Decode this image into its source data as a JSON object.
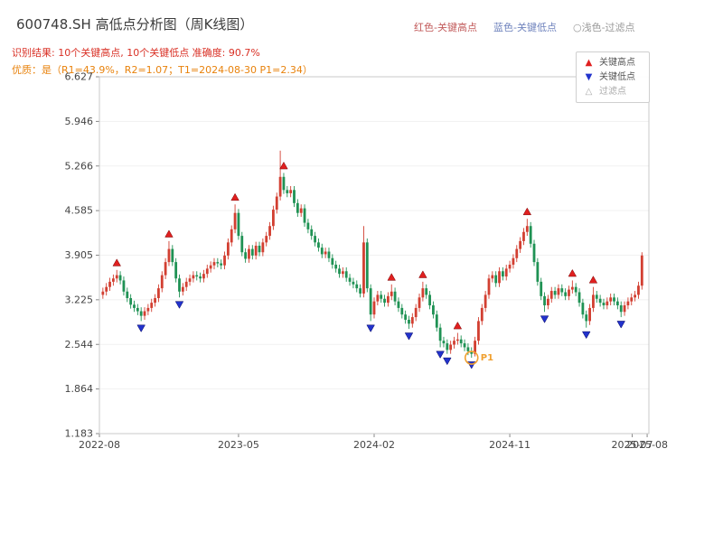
{
  "header": {
    "title": "600748.SH 高低点分析图（周K线图）",
    "legend_inline": [
      {
        "label": "红色-关键高点",
        "color": "#c25b5b"
      },
      {
        "label": "蓝色-关键低点",
        "color": "#6f83bd"
      },
      {
        "label": "○浅色-过滤点",
        "color": "#999999"
      }
    ],
    "result_line": "识别结果: 10个关键高点, 10个关键低点  准确度: 90.7%",
    "result_color": "#d93025",
    "quality_line": "优质：是（R1=43.9%，R2=1.07；T1=2024-08-30 P1=2.34）",
    "quality_color": "#e8820c"
  },
  "legend_box": {
    "items": [
      {
        "label": "关键高点",
        "glyph": "▲",
        "color": "#e02020",
        "muted": false
      },
      {
        "label": "关键低点",
        "glyph": "▼",
        "color": "#2233cc",
        "muted": false
      },
      {
        "label": "过滤点",
        "glyph": "△",
        "color": "#aaaaaa",
        "muted": true
      }
    ]
  },
  "chart_data": {
    "type": "candlestick",
    "symbol": "600748.SH",
    "period": "weekly",
    "title": "600748.SH 高低点分析图（周K线图）",
    "ylim": [
      1.183,
      6.627
    ],
    "y_ticks": [
      6.627,
      5.946,
      5.266,
      4.585,
      3.905,
      3.225,
      2.544,
      1.864,
      1.183
    ],
    "x_ticks": [
      {
        "label": "2022-08",
        "week": -1
      },
      {
        "label": "2023-05",
        "week": 39
      },
      {
        "label": "2024-02",
        "week": 78
      },
      {
        "label": "2024-11",
        "week": 117
      },
      {
        "label": "2025-07",
        "week": 152.2
      },
      {
        "label": "2025-08",
        "week": 156.5
      }
    ],
    "grid": "light-horizontal",
    "legend_position": "top-right",
    "key_high_count": 10,
    "key_low_count": 10,
    "accuracy": "90.7%",
    "annotation_point": {
      "week": 106,
      "price": 2.34,
      "label": "P1",
      "date": "2024-08-30"
    },
    "key_highs": [
      4,
      19,
      38,
      52,
      83,
      92,
      102,
      122,
      135,
      141
    ],
    "key_lows": [
      11,
      22,
      77,
      88,
      97,
      99,
      106,
      127,
      139,
      149
    ],
    "colors": {
      "up": "#d23f31",
      "down": "#1f9254",
      "key_high": "#e02020",
      "key_low": "#2233cc",
      "annotation": "#f0a030"
    },
    "candles": [
      [
        3.3,
        3.41,
        3.24,
        3.35
      ],
      [
        3.35,
        3.48,
        3.29,
        3.42
      ],
      [
        3.42,
        3.56,
        3.36,
        3.5
      ],
      [
        3.5,
        3.61,
        3.44,
        3.55
      ],
      [
        3.55,
        3.68,
        3.49,
        3.6
      ],
      [
        3.6,
        3.66,
        3.46,
        3.52
      ],
      [
        3.52,
        3.58,
        3.29,
        3.35
      ],
      [
        3.35,
        3.41,
        3.19,
        3.25
      ],
      [
        3.25,
        3.31,
        3.09,
        3.15
      ],
      [
        3.15,
        3.21,
        3.04,
        3.1
      ],
      [
        3.1,
        3.16,
        2.99,
        3.05
      ],
      [
        3.05,
        3.11,
        2.9,
        2.98
      ],
      [
        2.98,
        3.11,
        2.92,
        3.05
      ],
      [
        3.05,
        3.16,
        2.99,
        3.1
      ],
      [
        3.1,
        3.24,
        3.04,
        3.18
      ],
      [
        3.18,
        3.31,
        3.12,
        3.25
      ],
      [
        3.25,
        3.46,
        3.19,
        3.4
      ],
      [
        3.4,
        3.66,
        3.34,
        3.6
      ],
      [
        3.6,
        3.86,
        3.54,
        3.8
      ],
      [
        3.8,
        4.12,
        3.74,
        4.0
      ],
      [
        4.0,
        4.06,
        3.74,
        3.8
      ],
      [
        3.8,
        3.86,
        3.49,
        3.55
      ],
      [
        3.55,
        3.61,
        3.26,
        3.35
      ],
      [
        3.35,
        3.48,
        3.29,
        3.42
      ],
      [
        3.42,
        3.56,
        3.36,
        3.5
      ],
      [
        3.5,
        3.61,
        3.44,
        3.55
      ],
      [
        3.55,
        3.66,
        3.49,
        3.6
      ],
      [
        3.6,
        3.66,
        3.52,
        3.58
      ],
      [
        3.58,
        3.64,
        3.49,
        3.55
      ],
      [
        3.55,
        3.68,
        3.49,
        3.62
      ],
      [
        3.62,
        3.76,
        3.56,
        3.7
      ],
      [
        3.7,
        3.81,
        3.64,
        3.75
      ],
      [
        3.75,
        3.86,
        3.69,
        3.8
      ],
      [
        3.8,
        3.86,
        3.72,
        3.78
      ],
      [
        3.78,
        3.84,
        3.69,
        3.75
      ],
      [
        3.75,
        3.96,
        3.69,
        3.9
      ],
      [
        3.9,
        4.16,
        3.84,
        4.1
      ],
      [
        4.1,
        4.36,
        4.04,
        4.3
      ],
      [
        4.3,
        4.68,
        4.24,
        4.55
      ],
      [
        4.55,
        4.61,
        4.14,
        4.2
      ],
      [
        4.2,
        4.26,
        3.89,
        3.95
      ],
      [
        3.95,
        4.01,
        3.79,
        3.85
      ],
      [
        3.85,
        4.06,
        3.79,
        4.0
      ],
      [
        4.0,
        4.06,
        3.84,
        3.9
      ],
      [
        3.9,
        4.11,
        3.84,
        4.05
      ],
      [
        4.05,
        4.11,
        3.89,
        3.95
      ],
      [
        3.95,
        4.16,
        3.89,
        4.1
      ],
      [
        4.1,
        4.26,
        4.04,
        4.2
      ],
      [
        4.2,
        4.41,
        4.14,
        4.35
      ],
      [
        4.35,
        4.66,
        4.29,
        4.6
      ],
      [
        4.6,
        4.86,
        4.54,
        4.8
      ],
      [
        4.8,
        5.5,
        4.74,
        5.1
      ],
      [
        5.1,
        5.16,
        4.84,
        4.9
      ],
      [
        4.9,
        4.96,
        4.79,
        4.85
      ],
      [
        4.85,
        4.96,
        4.79,
        4.9
      ],
      [
        4.9,
        4.96,
        4.64,
        4.7
      ],
      [
        4.7,
        4.76,
        4.49,
        4.55
      ],
      [
        4.55,
        4.68,
        4.49,
        4.62
      ],
      [
        4.62,
        4.68,
        4.34,
        4.4
      ],
      [
        4.4,
        4.46,
        4.24,
        4.3
      ],
      [
        4.3,
        4.36,
        4.14,
        4.2
      ],
      [
        4.2,
        4.26,
        4.04,
        4.1
      ],
      [
        4.1,
        4.16,
        3.96,
        4.02
      ],
      [
        4.02,
        4.08,
        3.86,
        3.92
      ],
      [
        3.92,
        4.02,
        3.86,
        3.96
      ],
      [
        3.96,
        4.02,
        3.8,
        3.86
      ],
      [
        3.86,
        3.92,
        3.7,
        3.76
      ],
      [
        3.76,
        3.82,
        3.64,
        3.7
      ],
      [
        3.7,
        3.76,
        3.56,
        3.62
      ],
      [
        3.62,
        3.72,
        3.56,
        3.66
      ],
      [
        3.66,
        3.72,
        3.5,
        3.56
      ],
      [
        3.56,
        3.62,
        3.44,
        3.5
      ],
      [
        3.5,
        3.56,
        3.4,
        3.46
      ],
      [
        3.46,
        3.52,
        3.34,
        3.4
      ],
      [
        3.4,
        3.46,
        3.26,
        3.32
      ],
      [
        3.32,
        4.35,
        3.26,
        4.1
      ],
      [
        4.1,
        4.16,
        3.34,
        3.4
      ],
      [
        3.4,
        3.46,
        2.9,
        3.0
      ],
      [
        3.0,
        3.26,
        2.94,
        3.2
      ],
      [
        3.2,
        3.36,
        3.14,
        3.3
      ],
      [
        3.3,
        3.36,
        3.18,
        3.24
      ],
      [
        3.24,
        3.3,
        3.12,
        3.18
      ],
      [
        3.18,
        3.34,
        3.12,
        3.28
      ],
      [
        3.28,
        3.46,
        3.22,
        3.35
      ],
      [
        3.35,
        3.41,
        3.14,
        3.2
      ],
      [
        3.2,
        3.26,
        3.04,
        3.1
      ],
      [
        3.1,
        3.16,
        2.94,
        3.0
      ],
      [
        3.0,
        3.06,
        2.86,
        2.92
      ],
      [
        2.92,
        2.98,
        2.78,
        2.86
      ],
      [
        2.86,
        3.02,
        2.8,
        2.96
      ],
      [
        2.96,
        3.16,
        2.9,
        3.1
      ],
      [
        3.1,
        3.32,
        3.04,
        3.26
      ],
      [
        3.26,
        3.5,
        3.2,
        3.4
      ],
      [
        3.4,
        3.46,
        3.24,
        3.3
      ],
      [
        3.3,
        3.36,
        3.08,
        3.14
      ],
      [
        3.14,
        3.2,
        2.94,
        3.0
      ],
      [
        3.0,
        3.06,
        2.74,
        2.8
      ],
      [
        2.8,
        2.86,
        2.5,
        2.6
      ],
      [
        2.6,
        2.66,
        2.5,
        2.56
      ],
      [
        2.56,
        2.62,
        2.4,
        2.46
      ],
      [
        2.46,
        2.6,
        2.4,
        2.54
      ],
      [
        2.54,
        2.66,
        2.48,
        2.6
      ],
      [
        2.6,
        2.72,
        2.54,
        2.62
      ],
      [
        2.62,
        2.68,
        2.5,
        2.56
      ],
      [
        2.56,
        2.62,
        2.44,
        2.5
      ],
      [
        2.5,
        2.56,
        2.38,
        2.44
      ],
      [
        2.44,
        2.5,
        2.34,
        2.4
      ],
      [
        2.4,
        2.66,
        2.36,
        2.6
      ],
      [
        2.6,
        2.96,
        2.54,
        2.9
      ],
      [
        2.9,
        3.16,
        2.84,
        3.1
      ],
      [
        3.1,
        3.36,
        3.04,
        3.3
      ],
      [
        3.3,
        3.61,
        3.24,
        3.55
      ],
      [
        3.55,
        3.66,
        3.49,
        3.6
      ],
      [
        3.6,
        3.66,
        3.42,
        3.48
      ],
      [
        3.48,
        3.72,
        3.42,
        3.66
      ],
      [
        3.66,
        3.72,
        3.52,
        3.58
      ],
      [
        3.58,
        3.76,
        3.52,
        3.7
      ],
      [
        3.7,
        3.82,
        3.64,
        3.76
      ],
      [
        3.76,
        3.92,
        3.7,
        3.86
      ],
      [
        3.86,
        4.06,
        3.8,
        4.0
      ],
      [
        4.0,
        4.18,
        3.94,
        4.12
      ],
      [
        4.12,
        4.32,
        4.06,
        4.26
      ],
      [
        4.26,
        4.46,
        4.2,
        4.35
      ],
      [
        4.35,
        4.41,
        4.02,
        4.08
      ],
      [
        4.08,
        4.14,
        3.74,
        3.8
      ],
      [
        3.8,
        3.86,
        3.44,
        3.5
      ],
      [
        3.5,
        3.56,
        3.22,
        3.28
      ],
      [
        3.28,
        3.34,
        3.04,
        3.14
      ],
      [
        3.14,
        3.3,
        3.08,
        3.24
      ],
      [
        3.24,
        3.42,
        3.18,
        3.36
      ],
      [
        3.36,
        3.42,
        3.24,
        3.3
      ],
      [
        3.3,
        3.46,
        3.24,
        3.4
      ],
      [
        3.4,
        3.46,
        3.28,
        3.34
      ],
      [
        3.34,
        3.4,
        3.22,
        3.28
      ],
      [
        3.28,
        3.44,
        3.22,
        3.38
      ],
      [
        3.38,
        3.52,
        3.32,
        3.42
      ],
      [
        3.42,
        3.48,
        3.28,
        3.34
      ],
      [
        3.34,
        3.4,
        3.12,
        3.18
      ],
      [
        3.18,
        3.24,
        2.94,
        3.0
      ],
      [
        3.0,
        3.06,
        2.8,
        2.9
      ],
      [
        2.9,
        3.16,
        2.84,
        3.1
      ],
      [
        3.1,
        3.42,
        3.04,
        3.3
      ],
      [
        3.3,
        3.36,
        3.18,
        3.24
      ],
      [
        3.24,
        3.3,
        3.12,
        3.18
      ],
      [
        3.18,
        3.24,
        3.08,
        3.14
      ],
      [
        3.14,
        3.26,
        3.08,
        3.2
      ],
      [
        3.2,
        3.32,
        3.14,
        3.26
      ],
      [
        3.26,
        3.32,
        3.14,
        3.2
      ],
      [
        3.2,
        3.26,
        3.08,
        3.14
      ],
      [
        3.14,
        3.2,
        2.96,
        3.04
      ],
      [
        3.04,
        3.2,
        2.98,
        3.14
      ],
      [
        3.14,
        3.26,
        3.08,
        3.2
      ],
      [
        3.2,
        3.32,
        3.14,
        3.26
      ],
      [
        3.26,
        3.36,
        3.2,
        3.3
      ],
      [
        3.3,
        3.5,
        3.24,
        3.44
      ],
      [
        3.44,
        3.95,
        3.38,
        3.9
      ]
    ]
  }
}
